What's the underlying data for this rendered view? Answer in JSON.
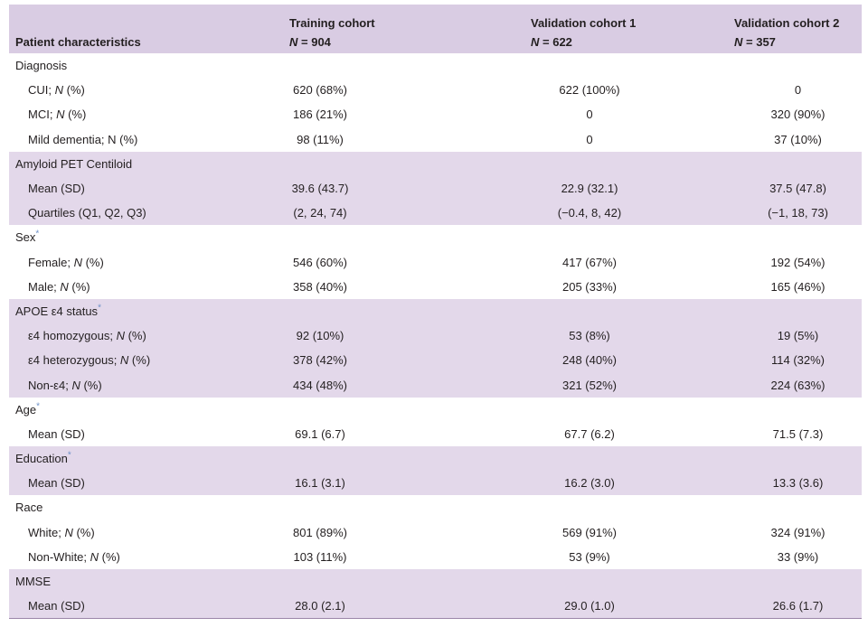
{
  "header": {
    "row_label": "Patient characteristics",
    "columns": [
      {
        "name": "Training cohort",
        "n_label": "N",
        "n_value": "= 904"
      },
      {
        "name": "Validation cohort 1",
        "n_label": "N",
        "n_value": "= 622"
      },
      {
        "name": "Validation cohort 2",
        "n_label": "N",
        "n_value": "= 357"
      }
    ]
  },
  "sections": [
    {
      "title": "Diagnosis",
      "star": "",
      "rows": [
        {
          "label": "CUI; ",
          "label_n": "N",
          "label_suffix": " (%)",
          "values": [
            "620 (68%)",
            "622 (100%)",
            "0"
          ]
        },
        {
          "label": "MCI; ",
          "label_n": "N",
          "label_suffix": " (%)",
          "values": [
            "186 (21%)",
            "0",
            "320 (90%)"
          ]
        },
        {
          "label": "Mild dementia; N (%)",
          "label_n": "",
          "label_suffix": "",
          "values": [
            "98 (11%)",
            "0",
            "37 (10%)"
          ]
        }
      ]
    },
    {
      "title": "Amyloid PET Centiloid",
      "star": "",
      "rows": [
        {
          "label": "Mean (SD)",
          "label_n": "",
          "label_suffix": "",
          "values": [
            "39.6 (43.7)",
            "22.9 (32.1)",
            "37.5 (47.8)"
          ]
        },
        {
          "label": "Quartiles (Q1, Q2, Q3)",
          "label_n": "",
          "label_suffix": "",
          "values": [
            "(2, 24, 74)",
            "(−0.4, 8, 42)",
            "(−1, 18, 73)"
          ]
        }
      ]
    },
    {
      "title": "Sex",
      "star": "*",
      "rows": [
        {
          "label": "Female; ",
          "label_n": "N",
          "label_suffix": " (%)",
          "values": [
            "546 (60%)",
            "417 (67%)",
            "192 (54%)"
          ]
        },
        {
          "label": "Male; ",
          "label_n": "N",
          "label_suffix": " (%)",
          "values": [
            "358 (40%)",
            "205 (33%)",
            "165 (46%)"
          ]
        }
      ]
    },
    {
      "title": "APOE ε4 status",
      "star": "*",
      "rows": [
        {
          "label": "ε4 homozygous; ",
          "label_n": "N",
          "label_suffix": " (%)",
          "values": [
            "92 (10%)",
            "53 (8%)",
            "19 (5%)"
          ]
        },
        {
          "label": "ε4 heterozygous; ",
          "label_n": "N",
          "label_suffix": " (%)",
          "values": [
            "378 (42%)",
            "248 (40%)",
            "114 (32%)"
          ]
        },
        {
          "label": "Non-ε4; ",
          "label_n": "N",
          "label_suffix": " (%)",
          "values": [
            "434 (48%)",
            "321 (52%)",
            "224 (63%)"
          ]
        }
      ]
    },
    {
      "title": "Age",
      "star": "*",
      "rows": [
        {
          "label": "Mean (SD)",
          "label_n": "",
          "label_suffix": "",
          "values": [
            "69.1 (6.7)",
            "67.7 (6.2)",
            "71.5 (7.3)"
          ]
        }
      ]
    },
    {
      "title": "Education",
      "star": "*",
      "rows": [
        {
          "label": "Mean (SD)",
          "label_n": "",
          "label_suffix": "",
          "values": [
            "16.1 (3.1)",
            "16.2 (3.0)",
            "13.3 (3.6)"
          ]
        }
      ]
    },
    {
      "title": "Race",
      "star": "",
      "rows": [
        {
          "label": "White; ",
          "label_n": "N",
          "label_suffix": " (%)",
          "values": [
            "801 (89%)",
            "569 (91%)",
            "324 (91%)"
          ]
        },
        {
          "label": "Non-White; ",
          "label_n": "N",
          "label_suffix": " (%)",
          "values": [
            "103 (11%)",
            "53 (9%)",
            "33 (9%)"
          ]
        }
      ]
    },
    {
      "title": "MMSE",
      "star": "",
      "rows": [
        {
          "label": "Mean (SD)",
          "label_n": "",
          "label_suffix": "",
          "values": [
            "28.0 (2.1)",
            "29.0 (1.0)",
            "26.6 (1.7)"
          ]
        }
      ]
    }
  ],
  "colors": {
    "header_bg": "#d9cce3",
    "shaded_bg": "#e3d8ea",
    "star": "#6f92c8"
  }
}
